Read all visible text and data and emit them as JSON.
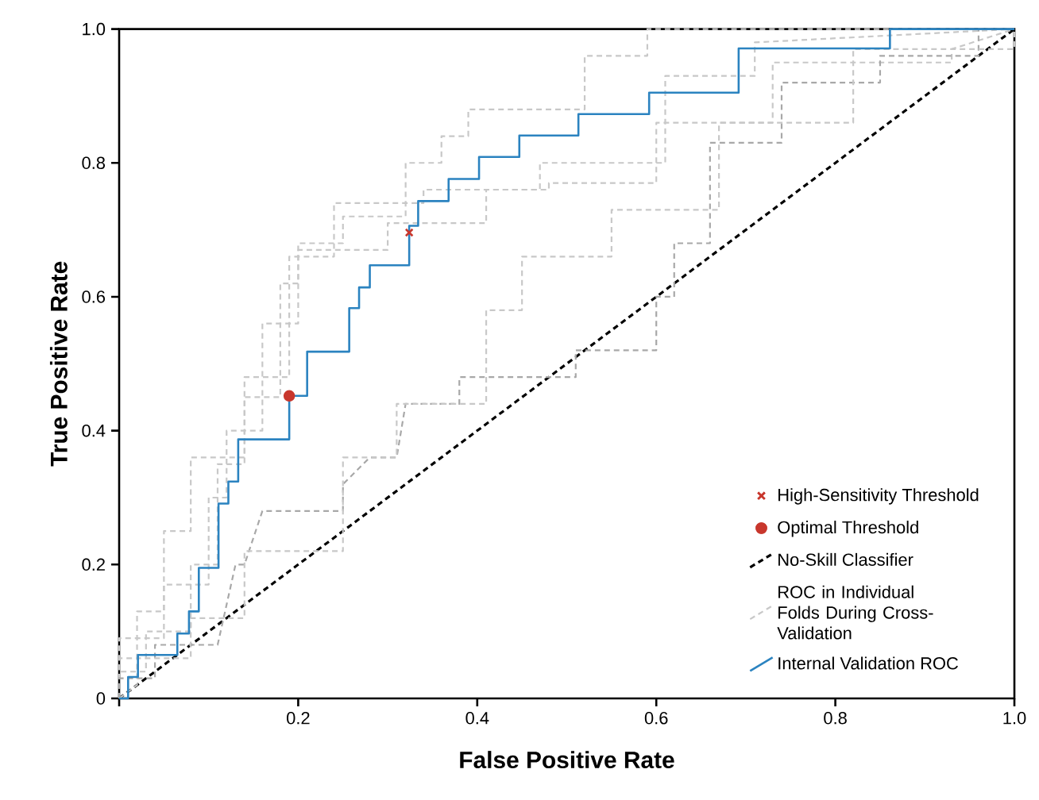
{
  "chart_data": {
    "type": "line",
    "xlabel": "False Positive Rate",
    "ylabel": "True Positive Rate",
    "xlim": [
      0,
      1
    ],
    "ylim": [
      0,
      1
    ],
    "xticks": [
      {
        "value": 0,
        "label": null
      },
      0.2,
      0.4,
      0.6,
      0.8,
      {
        "value": 1,
        "label": "1.0"
      }
    ],
    "yticks": [
      0,
      0.2,
      0.4,
      0.6,
      0.8,
      {
        "value": 1,
        "label": "1.0"
      }
    ],
    "grid": false,
    "legend": "bottom right",
    "series": [
      {
        "name": "High-Sensitivity Threshold",
        "type": "scatter",
        "marker": "cross",
        "color": "#c8372d",
        "x": [
          0.324
        ],
        "values": [
          0.696
        ]
      },
      {
        "name": "Optimal Threshold",
        "type": "scatter",
        "marker": "circle",
        "color": "#c8372d",
        "x": [
          0.19
        ],
        "values": [
          0.452
        ]
      },
      {
        "name": "No-Skill Classifier",
        "line_style": "dashed",
        "color": "#000000",
        "x": [
          0,
          1
        ],
        "values": [
          0,
          1
        ]
      },
      {
        "name": "ROC in Individual Folds During Cross-Validation",
        "line_style": "dashed",
        "color": "#c8c8c8",
        "x": [
          0,
          0,
          0.02,
          0.02,
          0.05,
          0.05,
          0.08,
          0.08,
          0.14,
          0.14,
          0.18,
          0.18,
          0.2,
          0.2,
          0.25,
          0.25,
          0.32,
          0.32,
          0.36,
          0.36,
          0.39,
          0.39,
          0.52,
          0.52,
          0.59,
          0.59,
          1
        ],
        "values": [
          0,
          0.06,
          0.06,
          0.13,
          0.13,
          0.25,
          0.25,
          0.36,
          0.36,
          0.45,
          0.45,
          0.62,
          0.62,
          0.68,
          0.68,
          0.72,
          0.72,
          0.8,
          0.8,
          0.84,
          0.84,
          0.88,
          0.88,
          0.96,
          0.96,
          1,
          1
        ]
      },
      {
        "line_style": "dashed",
        "color": "#c8c8c8",
        "x": [
          0,
          0,
          0.05,
          0.05,
          0.1,
          0.1,
          0.12,
          0.12,
          0.16,
          0.16,
          0.2,
          0.2,
          0.3,
          0.3,
          0.41,
          0.41,
          0.47,
          0.47,
          0.61,
          0.61,
          0.71,
          0.71,
          1
        ],
        "values": [
          0,
          0.09,
          0.09,
          0.17,
          0.17,
          0.3,
          0.3,
          0.4,
          0.4,
          0.56,
          0.56,
          0.67,
          0.67,
          0.71,
          0.71,
          0.76,
          0.76,
          0.8,
          0.8,
          0.93,
          0.93,
          0.98,
          1
        ]
      },
      {
        "line_style": "dashed",
        "color": "#c8c8c8",
        "x": [
          0,
          0,
          0.03,
          0.03,
          0.08,
          0.08,
          0.11,
          0.11,
          0.14,
          0.14,
          0.19,
          0.19,
          0.24,
          0.24,
          0.34,
          0.34,
          0.48,
          0.48,
          0.6,
          0.6,
          0.73,
          0.73,
          0.93,
          0.93,
          1
        ],
        "values": [
          0,
          0.04,
          0.04,
          0.1,
          0.1,
          0.2,
          0.2,
          0.35,
          0.35,
          0.48,
          0.48,
          0.66,
          0.66,
          0.74,
          0.74,
          0.76,
          0.76,
          0.77,
          0.77,
          0.86,
          0.86,
          0.95,
          0.95,
          0.97,
          1
        ]
      },
      {
        "line_style": "dashed",
        "color": "#a8a8a8",
        "x": [
          0,
          0,
          0.04,
          0.04,
          0.11,
          0.13,
          0.14,
          0.16,
          0.25,
          0.25,
          0.28,
          0.31,
          0.32,
          0.38,
          0.38,
          0.51,
          0.51,
          0.6,
          0.6,
          0.62,
          0.62,
          0.66,
          0.66,
          0.74,
          0.74,
          0.85,
          0.85,
          0.96,
          0.96,
          1
        ],
        "values": [
          0,
          0.03,
          0.03,
          0.08,
          0.08,
          0.2,
          0.2,
          0.28,
          0.28,
          0.32,
          0.36,
          0.36,
          0.44,
          0.44,
          0.48,
          0.48,
          0.52,
          0.52,
          0.6,
          0.6,
          0.68,
          0.68,
          0.83,
          0.83,
          0.92,
          0.92,
          0.96,
          0.96,
          1,
          1
        ]
      },
      {
        "line_style": "dashed",
        "color": "#c8c8c8",
        "x": [
          0,
          0.02,
          0.02,
          0.08,
          0.08,
          0.14,
          0.14,
          0.25,
          0.25,
          0.31,
          0.31,
          0.41,
          0.41,
          0.45,
          0.45,
          0.55,
          0.55,
          0.67,
          0.67,
          0.82,
          0.82,
          1,
          1
        ],
        "values": [
          0,
          0.02,
          0.06,
          0.06,
          0.12,
          0.12,
          0.22,
          0.22,
          0.36,
          0.36,
          0.44,
          0.44,
          0.58,
          0.58,
          0.66,
          0.66,
          0.73,
          0.73,
          0.86,
          0.86,
          0.97,
          0.97,
          1
        ]
      },
      {
        "name": "Internal Validation ROC",
        "line_style": "solid",
        "color": "#2b83c0",
        "x": [
          0,
          0.01,
          0.01,
          0.021,
          0.021,
          0.065,
          0.065,
          0.078,
          0.078,
          0.089,
          0.089,
          0.111,
          0.111,
          0.122,
          0.122,
          0.133,
          0.133,
          0.19,
          0.19,
          0.21,
          0.21,
          0.257,
          0.257,
          0.268,
          0.268,
          0.28,
          0.28,
          0.324,
          0.324,
          0.334,
          0.334,
          0.368,
          0.368,
          0.402,
          0.402,
          0.447,
          0.447,
          0.513,
          0.513,
          0.592,
          0.592,
          0.692,
          0.692,
          0.861,
          0.861,
          1
        ],
        "values": [
          0,
          0,
          0.032,
          0.032,
          0.065,
          0.065,
          0.097,
          0.097,
          0.13,
          0.13,
          0.195,
          0.195,
          0.291,
          0.291,
          0.324,
          0.324,
          0.387,
          0.387,
          0.452,
          0.452,
          0.518,
          0.518,
          0.583,
          0.583,
          0.614,
          0.614,
          0.647,
          0.647,
          0.706,
          0.706,
          0.743,
          0.743,
          0.776,
          0.776,
          0.809,
          0.809,
          0.841,
          0.841,
          0.873,
          0.873,
          0.905,
          0.905,
          0.971,
          0.971,
          1,
          1
        ]
      }
    ]
  }
}
